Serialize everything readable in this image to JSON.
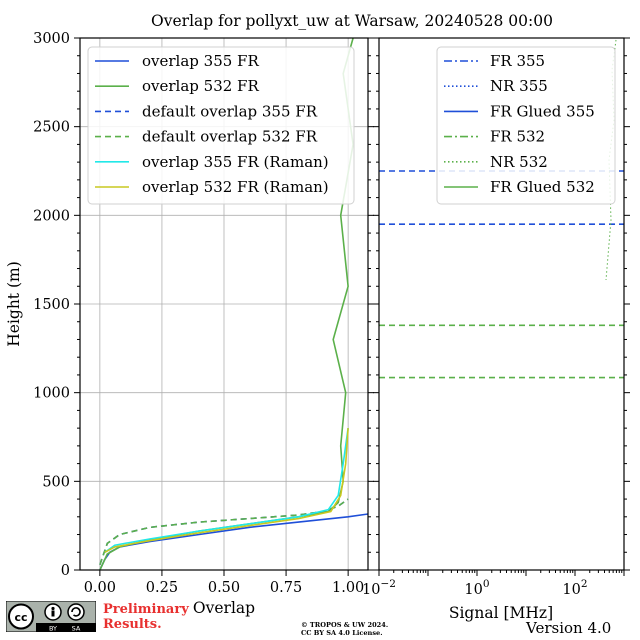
{
  "chart_data": [
    {
      "type": "line",
      "title": "Overlap for pollyxt_uw at Warsaw, 20240528 00:00",
      "xlabel": "Overlap",
      "ylabel": "Height (m)",
      "xlim": [
        -0.08,
        1.08
      ],
      "ylim": [
        0,
        3000
      ],
      "xticks": [
        "0.00",
        "0.25",
        "0.50",
        "0.75",
        "1.00"
      ],
      "yticks": [
        "0",
        "500",
        "1000",
        "1500",
        "2000",
        "2500",
        "3000"
      ],
      "grid": true,
      "legend_position": "top-right",
      "series": [
        {
          "name": "overlap 355 FR",
          "color": "#1f4fd8",
          "style": "solid",
          "points": [
            [
              0.0,
              0
            ],
            [
              0.02,
              60
            ],
            [
              0.04,
              100
            ],
            [
              0.08,
              130
            ],
            [
              0.2,
              160
            ],
            [
              0.4,
              200
            ],
            [
              0.6,
              240
            ],
            [
              0.8,
              270
            ],
            [
              1.0,
              300
            ],
            [
              1.1,
              320
            ]
          ]
        },
        {
          "name": "overlap 532 FR",
          "color": "#5bb04a",
          "style": "solid",
          "points": [
            [
              0.0,
              0
            ],
            [
              0.03,
              90
            ],
            [
              0.08,
              130
            ],
            [
              0.2,
              170
            ],
            [
              0.4,
              220
            ],
            [
              0.6,
              260
            ],
            [
              0.8,
              300
            ],
            [
              0.92,
              330
            ],
            [
              0.96,
              380
            ],
            [
              0.98,
              500
            ],
            [
              0.97,
              700
            ],
            [
              0.99,
              1000
            ],
            [
              0.94,
              1300
            ],
            [
              1.0,
              1600
            ],
            [
              0.97,
              2000
            ],
            [
              1.02,
              2400
            ],
            [
              0.98,
              2800
            ],
            [
              1.02,
              3000
            ]
          ]
        },
        {
          "name": "default overlap 355 FR",
          "color": "#1f4fd8",
          "style": "dashed",
          "points": [
            [
              0.0,
              30
            ],
            [
              0.03,
              150
            ],
            [
              0.08,
              200
            ],
            [
              0.2,
              240
            ],
            [
              0.4,
              270
            ],
            [
              0.6,
              290
            ],
            [
              0.8,
              310
            ],
            [
              0.9,
              330
            ],
            [
              0.96,
              360
            ],
            [
              1.0,
              400
            ]
          ]
        },
        {
          "name": "default overlap 532 FR",
          "color": "#5bb04a",
          "style": "dashed",
          "points": [
            [
              0.0,
              30
            ],
            [
              0.03,
              150
            ],
            [
              0.08,
              200
            ],
            [
              0.2,
              240
            ],
            [
              0.4,
              270
            ],
            [
              0.6,
              290
            ],
            [
              0.8,
              310
            ],
            [
              0.9,
              330
            ],
            [
              0.96,
              360
            ],
            [
              1.0,
              400
            ]
          ]
        },
        {
          "name": "overlap 355 FR (Raman)",
          "color": "#22e8e8",
          "style": "solid",
          "points": [
            [
              0.02,
              100
            ],
            [
              0.06,
              140
            ],
            [
              0.2,
              175
            ],
            [
              0.4,
              220
            ],
            [
              0.6,
              260
            ],
            [
              0.8,
              300
            ],
            [
              0.92,
              340
            ],
            [
              0.96,
              420
            ],
            [
              0.98,
              600
            ],
            [
              1.0,
              800
            ]
          ]
        },
        {
          "name": "overlap 532 FR (Raman)",
          "color": "#c8c820",
          "style": "solid",
          "points": [
            [
              0.02,
              100
            ],
            [
              0.06,
              130
            ],
            [
              0.2,
              165
            ],
            [
              0.4,
              210
            ],
            [
              0.6,
              250
            ],
            [
              0.8,
              290
            ],
            [
              0.93,
              330
            ],
            [
              0.97,
              420
            ],
            [
              0.99,
              600
            ],
            [
              1.0,
              800
            ]
          ]
        }
      ]
    },
    {
      "type": "line",
      "xlabel": "Signal [MHz]",
      "xscale": "log",
      "xlim": [
        0.01,
        1000
      ],
      "xticks": [
        "10",
        "10",
        "10"
      ],
      "xtick_exponents": [
        "−2",
        "0",
        "2"
      ],
      "ylim": [
        0,
        3000
      ],
      "legend_position": "top-right",
      "series": [
        {
          "name": "FR 355",
          "color": "#1f4fd8",
          "style": "dashdot"
        },
        {
          "name": "NR 355",
          "color": "#1f4fd8",
          "style": "dotted"
        },
        {
          "name": "FR Glued 355",
          "color": "#1f4fd8",
          "style": "solid"
        },
        {
          "name": "FR 532",
          "color": "#5bb04a",
          "style": "dashdot"
        },
        {
          "name": "NR 532",
          "color": "#5bb04a",
          "style": "dotted"
        },
        {
          "name": "FR Glued 532",
          "color": "#5bb04a",
          "style": "solid"
        }
      ],
      "hlines": [
        {
          "y": 2250,
          "color": "#1f4fd8",
          "style": "dashed"
        },
        {
          "y": 1950,
          "color": "#1f4fd8",
          "style": "dashed"
        },
        {
          "y": 1380,
          "color": "#5bb04a",
          "style": "dashed"
        },
        {
          "y": 1085,
          "color": "#5bb04a",
          "style": "dashed"
        }
      ]
    }
  ],
  "footer": {
    "license_badge": [
      "cc",
      "BY",
      "SA"
    ],
    "preliminary": "Preliminary Results.",
    "copyright_line1": "© TROPOS & UW 2024.",
    "copyright_line2": "CC BY SA 4.0 License.",
    "version": "Version 4.0"
  }
}
